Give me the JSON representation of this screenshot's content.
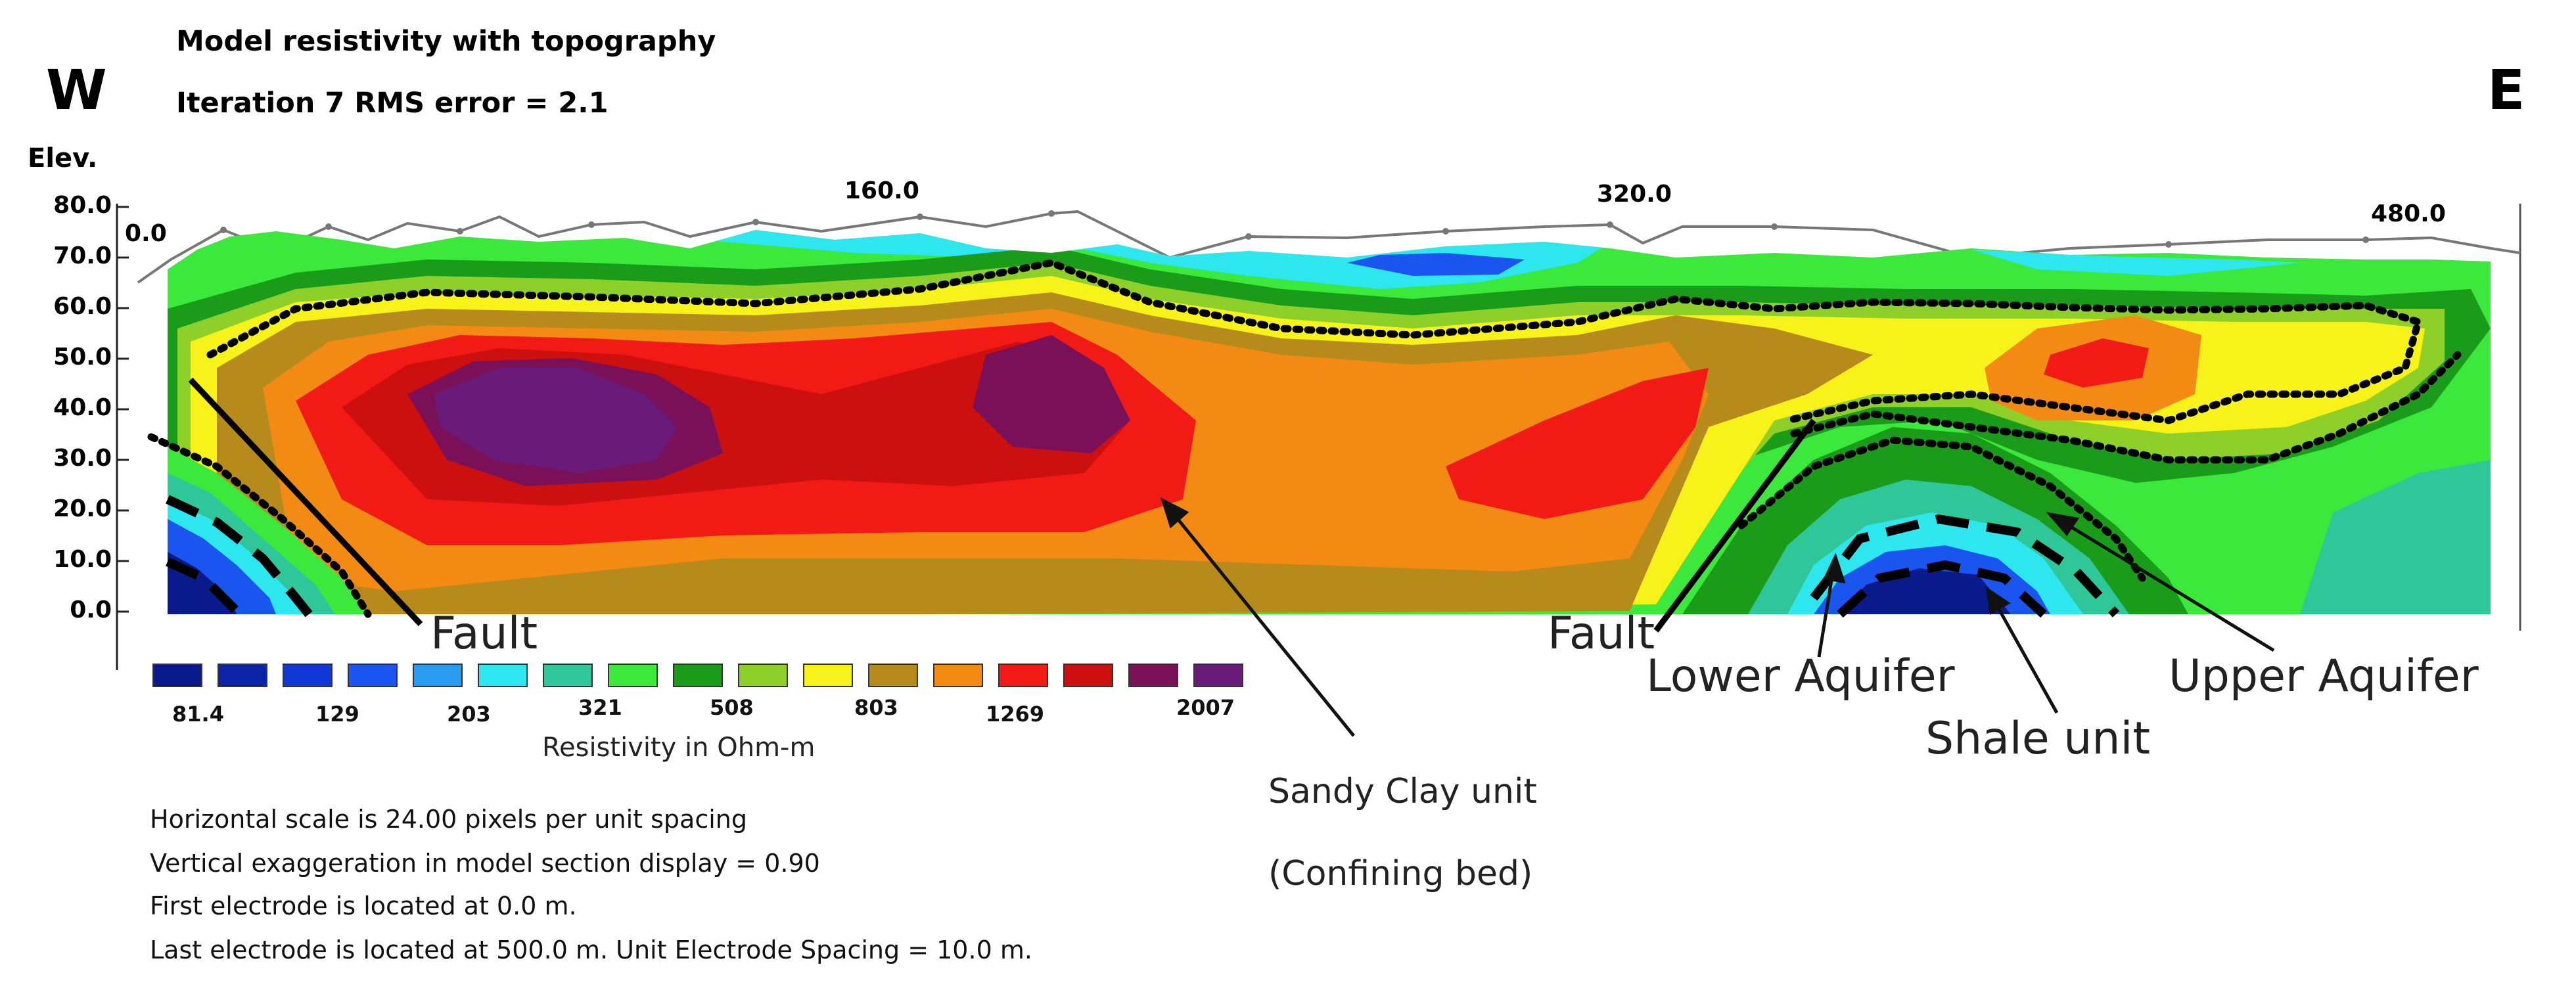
{
  "title": "Model resistivity with topography",
  "subtitle": "Iteration  7 RMS error = 2.1",
  "compass": {
    "west": "W",
    "east": "E"
  },
  "elevation_axis": {
    "label": "Elev.",
    "ticks": [
      "80.0",
      "70.0",
      "60.0",
      "50.0",
      "40.0",
      "30.0",
      "20.0",
      "10.0",
      "0.0"
    ]
  },
  "distance_axis": {
    "ticks": [
      "0.0",
      "160.0",
      "320.0",
      "480.0"
    ]
  },
  "legend": {
    "colors": [
      "#0a1a8a",
      "#0c24a8",
      "#1238d6",
      "#1a55f0",
      "#2a9df2",
      "#2ee6ee",
      "#2fc79a",
      "#3ce83c",
      "#1a9c1a",
      "#8fcf2a",
      "#f6f21a",
      "#b78a1c",
      "#f28a14",
      "#f21a14",
      "#cc1010",
      "#7a1058",
      "#6a1a78"
    ],
    "values": [
      "81.4",
      "129",
      "203",
      "321",
      "508",
      "803",
      "1269",
      "2007"
    ],
    "caption": "Resistivity in Ohm-m"
  },
  "annotations": {
    "fault_left": "Fault",
    "fault_right": "Fault",
    "lower_aquifer": "Lower Aquifer",
    "upper_aquifer": "Upper Aquifer",
    "shale_unit": "Shale unit",
    "sandy_clay_line1": "Sandy Clay unit",
    "sandy_clay_line2": "(Confining bed)"
  },
  "notes": [
    "Horizontal  scale is 24.00 pixels per unit spacing",
    "Vertical exaggeration in model section display = 0.90",
    "First electrode is located at 0.0  m.",
    "Last electrode is located at 500.0 m.       Unit Electrode Spacing = 10.0 m."
  ]
}
